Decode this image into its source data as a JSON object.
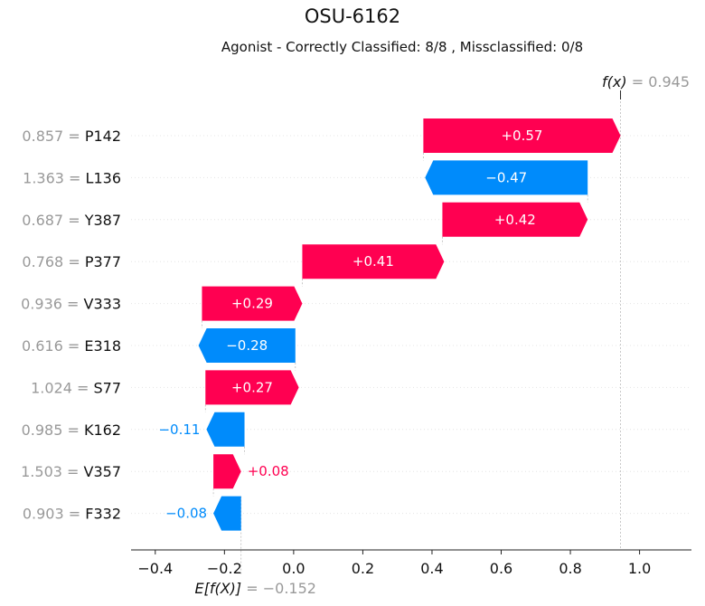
{
  "chart_data": {
    "type": "waterfall",
    "title": "OSU-6162",
    "subtitle": "Agonist - Correctly Classified: 8/8 , Missclassified: 0/8",
    "base_value": -0.152,
    "base_label": "E[f(X)]",
    "base_value_text": "= −0.152",
    "output_value": 0.945,
    "output_label": "f(x)",
    "output_value_text": "= 0.945",
    "xlim": [
      -0.47,
      1.15
    ],
    "x_ticks": [
      -0.4,
      -0.2,
      0.0,
      0.2,
      0.4,
      0.6,
      0.8,
      1.0
    ],
    "x_tick_labels": [
      "−0.4",
      "−0.2",
      "0.0",
      "0.2",
      "0.4",
      "0.6",
      "0.8",
      "1.0"
    ],
    "colors": {
      "positive": "#ff0051",
      "negative": "#008bfb"
    },
    "features": [
      {
        "value_text": "0.857",
        "name": "P142",
        "start": 0.375,
        "end": 0.945,
        "label": "+0.57"
      },
      {
        "value_text": "1.363",
        "name": "L136",
        "start": 0.85,
        "end": 0.38,
        "label": "−0.47"
      },
      {
        "value_text": "0.687",
        "name": "Y387",
        "start": 0.43,
        "end": 0.85,
        "label": "+0.42"
      },
      {
        "value_text": "0.768",
        "name": "P377",
        "start": 0.025,
        "end": 0.435,
        "label": "+0.41"
      },
      {
        "value_text": "0.936",
        "name": "V333",
        "start": -0.265,
        "end": 0.025,
        "label": "+0.29"
      },
      {
        "value_text": "0.616",
        "name": "E318",
        "start": 0.005,
        "end": -0.275,
        "label": "−0.28"
      },
      {
        "value_text": "1.024",
        "name": "S77",
        "start": -0.255,
        "end": 0.015,
        "label": "+0.27"
      },
      {
        "value_text": "0.985",
        "name": "K162",
        "start": -0.142,
        "end": -0.252,
        "label": "−0.11"
      },
      {
        "value_text": "1.503",
        "name": "V357",
        "start": -0.232,
        "end": -0.152,
        "label": "+0.08"
      },
      {
        "value_text": "0.903",
        "name": "F332",
        "start": -0.152,
        "end": -0.232,
        "label": "−0.08"
      }
    ]
  }
}
